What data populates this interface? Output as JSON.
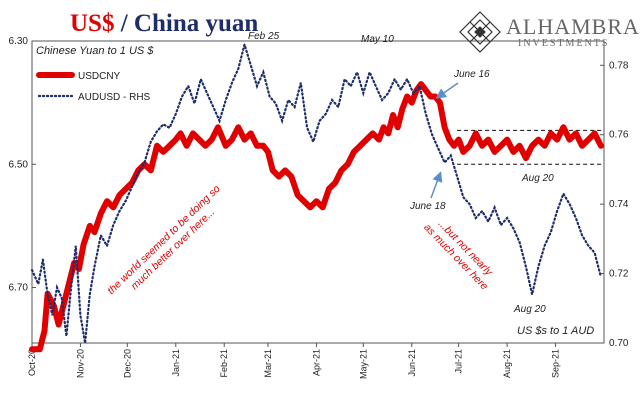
{
  "header": {
    "title_main": "US$",
    "title_sep": " / ",
    "title_rest": "China yuan"
  },
  "logo": {
    "name": "ALHAMBRA",
    "sub": "INVESTMENTS"
  },
  "colors": {
    "usdcny": "#e00000",
    "audusd": "#1f2d6b",
    "title_red": "#e00000",
    "title_navy": "#1f2d6b",
    "annotation_red": "#e00000",
    "arrow": "#5b8fc7"
  },
  "chart_data": {
    "type": "line",
    "left_axis_label": "Chinese Yuan to 1 US $",
    "right_axis_label": "US $s to 1 AUD",
    "left_axis": {
      "ticks": [
        "6.30",
        "6.50",
        "6.70"
      ],
      "ylim": [
        6.3,
        6.79
      ],
      "inverted": true
    },
    "right_axis": {
      "ticks": [
        "0.78",
        "0.76",
        "0.74",
        "0.72",
        "0.70"
      ],
      "ylim": [
        0.7,
        0.787
      ]
    },
    "x_tick_labels": [
      "Oct-20",
      "Nov-20",
      "Dec-20",
      "Jan-21",
      "Feb-21",
      "Mar-21",
      "Apr-21",
      "May-21",
      "Jun-21",
      "Jul-21",
      "Aug-21",
      "Sep-21"
    ],
    "x_ticks_days": [
      0,
      31,
      61,
      92,
      123,
      151,
      182,
      212,
      243,
      273,
      304,
      335
    ],
    "x_max_days": 366,
    "series": [
      {
        "name": "USDCNY",
        "axis": "left",
        "style": "solid",
        "points": [
          [
            0,
            6.8
          ],
          [
            5,
            6.8
          ],
          [
            8,
            6.77
          ],
          [
            10,
            6.71
          ],
          [
            14,
            6.73
          ],
          [
            17,
            6.76
          ],
          [
            20,
            6.73
          ],
          [
            24,
            6.69
          ],
          [
            27,
            6.66
          ],
          [
            30,
            6.67
          ],
          [
            33,
            6.63
          ],
          [
            37,
            6.6
          ],
          [
            40,
            6.61
          ],
          [
            44,
            6.58
          ],
          [
            48,
            6.56
          ],
          [
            52,
            6.57
          ],
          [
            56,
            6.55
          ],
          [
            60,
            6.54
          ],
          [
            64,
            6.53
          ],
          [
            68,
            6.51
          ],
          [
            72,
            6.5
          ],
          [
            76,
            6.51
          ],
          [
            80,
            6.47
          ],
          [
            84,
            6.48
          ],
          [
            88,
            6.47
          ],
          [
            92,
            6.46
          ],
          [
            95,
            6.45
          ],
          [
            99,
            6.47
          ],
          [
            103,
            6.45
          ],
          [
            107,
            6.46
          ],
          [
            111,
            6.47
          ],
          [
            115,
            6.46
          ],
          [
            119,
            6.44
          ],
          [
            124,
            6.47
          ],
          [
            128,
            6.46
          ],
          [
            132,
            6.44
          ],
          [
            136,
            6.46
          ],
          [
            140,
            6.45
          ],
          [
            144,
            6.47
          ],
          [
            148,
            6.47
          ],
          [
            151,
            6.48
          ],
          [
            154,
            6.51
          ],
          [
            158,
            6.52
          ],
          [
            162,
            6.51
          ],
          [
            166,
            6.52
          ],
          [
            170,
            6.55
          ],
          [
            174,
            6.56
          ],
          [
            178,
            6.57
          ],
          [
            182,
            6.56
          ],
          [
            186,
            6.57
          ],
          [
            190,
            6.54
          ],
          [
            194,
            6.53
          ],
          [
            198,
            6.51
          ],
          [
            202,
            6.5
          ],
          [
            206,
            6.48
          ],
          [
            210,
            6.47
          ],
          [
            214,
            6.46
          ],
          [
            218,
            6.45
          ],
          [
            222,
            6.46
          ],
          [
            225,
            6.44
          ],
          [
            228,
            6.45
          ],
          [
            231,
            6.42
          ],
          [
            234,
            6.44
          ],
          [
            237,
            6.41
          ],
          [
            240,
            6.39
          ],
          [
            243,
            6.4
          ],
          [
            246,
            6.38
          ],
          [
            249,
            6.37
          ],
          [
            252,
            6.38
          ],
          [
            255,
            6.39
          ],
          [
            258,
            6.39
          ],
          [
            261,
            6.4
          ],
          [
            264,
            6.44
          ],
          [
            267,
            6.46
          ],
          [
            270,
            6.47
          ],
          [
            273,
            6.46
          ],
          [
            276,
            6.48
          ],
          [
            280,
            6.47
          ],
          [
            284,
            6.45
          ],
          [
            288,
            6.47
          ],
          [
            292,
            6.46
          ],
          [
            296,
            6.48
          ],
          [
            300,
            6.47
          ],
          [
            304,
            6.46
          ],
          [
            308,
            6.48
          ],
          [
            312,
            6.47
          ],
          [
            316,
            6.49
          ],
          [
            320,
            6.47
          ],
          [
            324,
            6.46
          ],
          [
            328,
            6.47
          ],
          [
            332,
            6.45
          ],
          [
            336,
            6.46
          ],
          [
            340,
            6.44
          ],
          [
            344,
            6.46
          ],
          [
            348,
            6.45
          ],
          [
            352,
            6.47
          ],
          [
            356,
            6.46
          ],
          [
            360,
            6.45
          ],
          [
            364,
            6.47
          ]
        ]
      },
      {
        "name": "AUDUSD - RHS",
        "axis": "right",
        "style": "dotted",
        "points": [
          [
            0,
            0.721
          ],
          [
            4,
            0.717
          ],
          [
            7,
            0.724
          ],
          [
            10,
            0.714
          ],
          [
            13,
            0.708
          ],
          [
            16,
            0.716
          ],
          [
            19,
            0.713
          ],
          [
            22,
            0.702
          ],
          [
            25,
            0.716
          ],
          [
            28,
            0.728
          ],
          [
            31,
            0.708
          ],
          [
            34,
            0.7
          ],
          [
            37,
            0.714
          ],
          [
            40,
            0.722
          ],
          [
            44,
            0.731
          ],
          [
            48,
            0.728
          ],
          [
            52,
            0.734
          ],
          [
            56,
            0.738
          ],
          [
            60,
            0.741
          ],
          [
            64,
            0.745
          ],
          [
            68,
            0.749
          ],
          [
            72,
            0.752
          ],
          [
            76,
            0.758
          ],
          [
            80,
            0.761
          ],
          [
            84,
            0.763
          ],
          [
            88,
            0.762
          ],
          [
            92,
            0.766
          ],
          [
            96,
            0.771
          ],
          [
            100,
            0.774
          ],
          [
            104,
            0.769
          ],
          [
            108,
            0.776
          ],
          [
            112,
            0.772
          ],
          [
            116,
            0.768
          ],
          [
            120,
            0.764
          ],
          [
            124,
            0.77
          ],
          [
            128,
            0.775
          ],
          [
            132,
            0.779
          ],
          [
            136,
            0.786
          ],
          [
            140,
            0.78
          ],
          [
            144,
            0.774
          ],
          [
            148,
            0.778
          ],
          [
            152,
            0.771
          ],
          [
            156,
            0.769
          ],
          [
            160,
            0.764
          ],
          [
            164,
            0.77
          ],
          [
            168,
            0.768
          ],
          [
            172,
            0.775
          ],
          [
            176,
            0.762
          ],
          [
            180,
            0.758
          ],
          [
            184,
            0.764
          ],
          [
            188,
            0.766
          ],
          [
            192,
            0.77
          ],
          [
            196,
            0.768
          ],
          [
            200,
            0.776
          ],
          [
            204,
            0.774
          ],
          [
            208,
            0.778
          ],
          [
            212,
            0.772
          ],
          [
            216,
            0.778
          ],
          [
            220,
            0.774
          ],
          [
            224,
            0.77
          ],
          [
            228,
            0.772
          ],
          [
            232,
            0.776
          ],
          [
            236,
            0.773
          ],
          [
            240,
            0.776
          ],
          [
            244,
            0.772
          ],
          [
            248,
            0.774
          ],
          [
            252,
            0.766
          ],
          [
            256,
            0.76
          ],
          [
            260,
            0.756
          ],
          [
            264,
            0.752
          ],
          [
            268,
            0.754
          ],
          [
            272,
            0.748
          ],
          [
            276,
            0.742
          ],
          [
            280,
            0.74
          ],
          [
            284,
            0.736
          ],
          [
            288,
            0.738
          ],
          [
            292,
            0.735
          ],
          [
            296,
            0.739
          ],
          [
            300,
            0.734
          ],
          [
            304,
            0.736
          ],
          [
            308,
            0.733
          ],
          [
            312,
            0.729
          ],
          [
            316,
            0.722
          ],
          [
            320,
            0.714
          ],
          [
            324,
            0.722
          ],
          [
            328,
            0.728
          ],
          [
            332,
            0.732
          ],
          [
            336,
            0.738
          ],
          [
            340,
            0.743
          ],
          [
            344,
            0.74
          ],
          [
            348,
            0.736
          ],
          [
            352,
            0.731
          ],
          [
            356,
            0.728
          ],
          [
            360,
            0.726
          ],
          [
            364,
            0.719
          ]
        ]
      }
    ],
    "reference_lines": [
      {
        "axis": "left",
        "value": 6.445,
        "x_from_days": 272,
        "style": "dashed"
      },
      {
        "axis": "left",
        "value": 6.5,
        "x_from_days": 272,
        "style": "dashed"
      }
    ],
    "annotations": [
      {
        "text": "Feb 25",
        "color": "dark"
      },
      {
        "text": "May 10",
        "color": "dark"
      },
      {
        "text": "June 16",
        "color": "dark"
      },
      {
        "text": "June 18",
        "color": "dark"
      },
      {
        "text": "Aug 20",
        "color": "dark",
        "id": "aug20_cny"
      },
      {
        "text": "Aug 20",
        "color": "dark",
        "id": "aug20_aud"
      },
      {
        "text": "the world seemed to be doing so much better over here...",
        "color": "red"
      },
      {
        "text": "...but not nearly as much over here",
        "color": "red"
      }
    ]
  }
}
